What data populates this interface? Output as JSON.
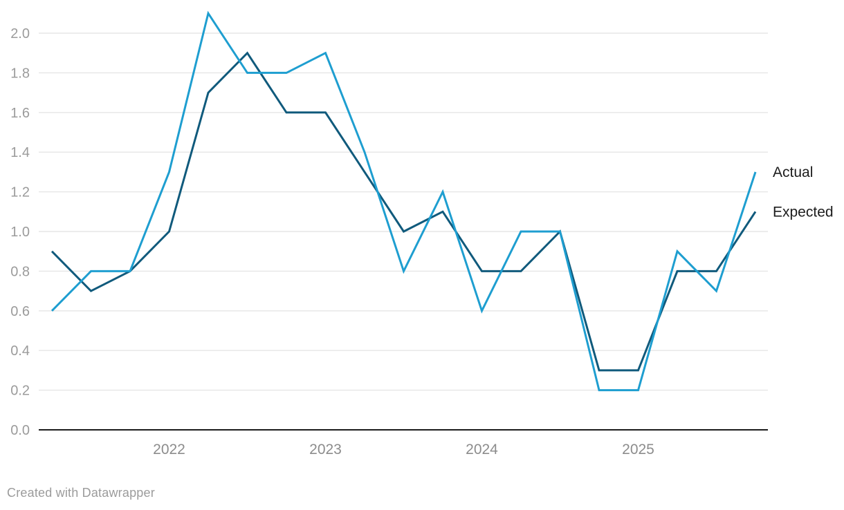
{
  "chart": {
    "footer_credit": "Created with Datawrapper",
    "colors": {
      "actual_line": "#1e9ed0",
      "expected_line": "#105a7c",
      "gridline": "#e6e6e6",
      "axis_line": "#1a1a1a",
      "y_tick_text": "#9b9b9b",
      "x_tick_text": "#8c8c8c",
      "legend_text": "#1c1c1c",
      "footer_text": "#9b9b9b"
    }
  },
  "chart_data": {
    "type": "line",
    "title": "",
    "xlabel": "",
    "ylabel": "",
    "grid": true,
    "legend_position": "right-end-of-line",
    "ylim": [
      0.0,
      2.12
    ],
    "y_ticks": [
      {
        "label": "0.0",
        "value": 0.0
      },
      {
        "label": "0.2",
        "value": 0.2
      },
      {
        "label": "0.4",
        "value": 0.4
      },
      {
        "label": "0.6",
        "value": 0.6
      },
      {
        "label": "0.8",
        "value": 0.8
      },
      {
        "label": "1.0",
        "value": 1.0
      },
      {
        "label": "1.2",
        "value": 1.2
      },
      {
        "label": "1.4",
        "value": 1.4
      },
      {
        "label": "1.6",
        "value": 1.6
      },
      {
        "label": "1.8",
        "value": 1.8
      },
      {
        "label": "2.0",
        "value": 2.0
      }
    ],
    "x_point_count": 19,
    "x_ticks": [
      {
        "label": "2022",
        "index": 3
      },
      {
        "label": "2023",
        "index": 7
      },
      {
        "label": "2024",
        "index": 11
      },
      {
        "label": "2025",
        "index": 15
      }
    ],
    "series": [
      {
        "name": "Expected",
        "color": "#105a7c",
        "values": [
          0.9,
          0.7,
          0.8,
          1.0,
          1.7,
          1.9,
          1.6,
          1.6,
          1.3,
          1.0,
          1.1,
          0.8,
          0.8,
          1.0,
          0.3,
          0.3,
          0.8,
          0.8,
          1.1
        ]
      },
      {
        "name": "Actual",
        "color": "#1e9ed0",
        "values": [
          0.6,
          0.8,
          0.8,
          1.3,
          2.1,
          1.8,
          1.8,
          1.9,
          1.4,
          0.8,
          1.2,
          0.6,
          1.0,
          1.0,
          0.2,
          0.2,
          0.9,
          0.7,
          1.3
        ]
      }
    ]
  }
}
